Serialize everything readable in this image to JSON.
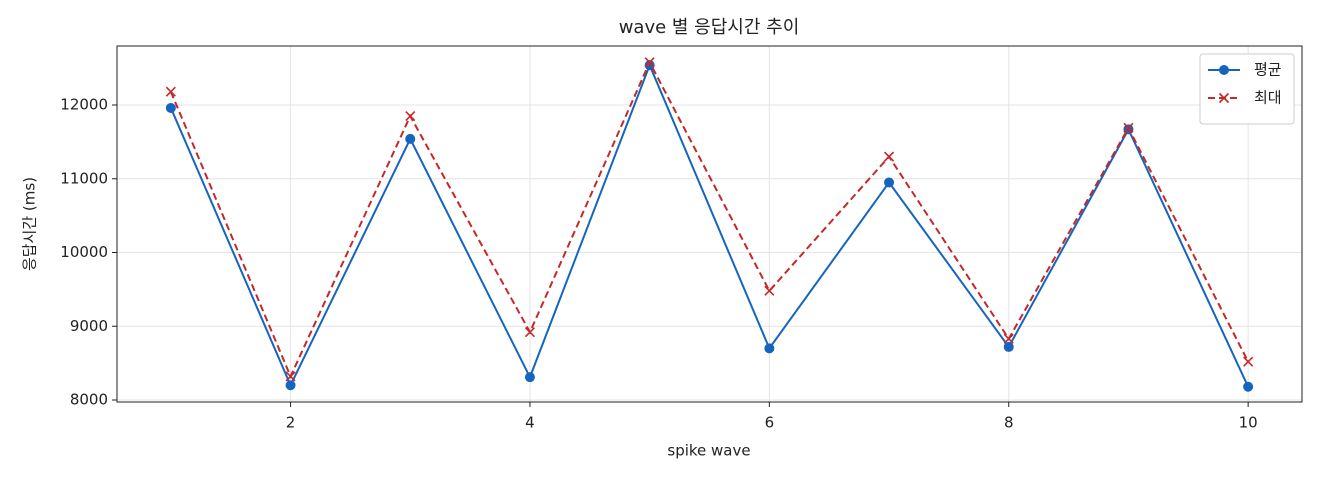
{
  "chart_data": {
    "type": "line",
    "title": "wave 별 응답시간 추이",
    "x_label": "spike wave",
    "y_label": "응답시간 (ms)",
    "x": [
      1,
      2,
      3,
      4,
      5,
      6,
      7,
      8,
      9,
      10
    ],
    "series": [
      {
        "name": "평균",
        "color": "#1565c0",
        "linestyle": "solid",
        "marker": "circle",
        "values": [
          11960,
          8200,
          11540,
          8310,
          12540,
          8700,
          10950,
          8720,
          11670,
          8180
        ]
      },
      {
        "name": "최대",
        "color": "#c62828",
        "linestyle": "dashed",
        "marker": "x",
        "values": [
          12180,
          8320,
          11850,
          8920,
          12580,
          9480,
          11300,
          8830,
          11690,
          8520
        ]
      }
    ],
    "xlim": [
      0.55,
      10.45
    ],
    "ylim": [
      7973,
      12800
    ],
    "xticks": [
      2,
      4,
      6,
      8,
      10
    ],
    "yticks": [
      8000,
      9000,
      10000,
      11000,
      12000
    ],
    "grid": true,
    "legend": "upper right"
  }
}
